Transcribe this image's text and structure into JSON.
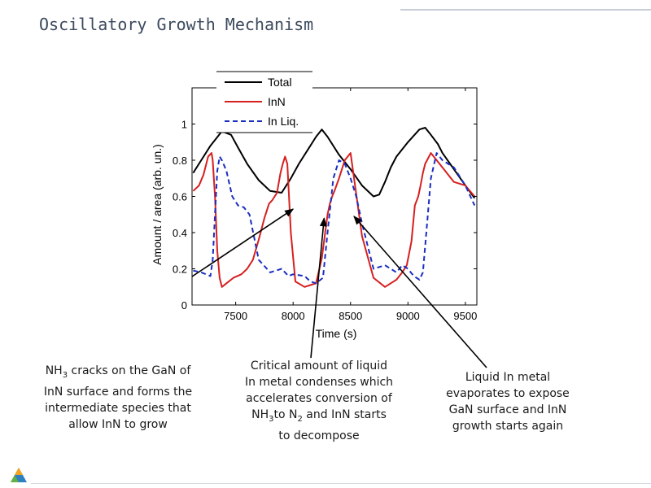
{
  "slide_title": "Oscillatory Growth Mechanism",
  "chart_data": {
    "type": "line",
    "xlabel": "Time (s)",
    "ylabel": "Amount / area (arb. un.)",
    "xlim": [
      7120,
      9600
    ],
    "ylim": [
      0,
      1.2
    ],
    "xticks": [
      "7500",
      "8000",
      "8500",
      "9000",
      "9500"
    ],
    "yticks": [
      "0",
      "0.2",
      "0.4",
      "0.6",
      "0.8",
      "1"
    ],
    "legend_position": "top-center",
    "series": [
      {
        "name": "Total",
        "color": "#000000",
        "style": "solid",
        "x": [
          7130,
          7200,
          7280,
          7380,
          7460,
          7520,
          7600,
          7700,
          7800,
          7900,
          7980,
          8050,
          8150,
          8200,
          8250,
          8300,
          8400,
          8500,
          8600,
          8700,
          8750,
          8800,
          8850,
          8900,
          9000,
          9100,
          9150,
          9200,
          9260,
          9300,
          9400,
          9500,
          9580
        ],
        "values": [
          0.73,
          0.8,
          0.88,
          0.96,
          0.94,
          0.87,
          0.78,
          0.69,
          0.63,
          0.62,
          0.7,
          0.78,
          0.88,
          0.93,
          0.97,
          0.93,
          0.83,
          0.75,
          0.66,
          0.6,
          0.61,
          0.68,
          0.76,
          0.82,
          0.9,
          0.97,
          0.98,
          0.94,
          0.89,
          0.84,
          0.75,
          0.66,
          0.59
        ]
      },
      {
        "name": "InN",
        "color": "#d62020",
        "style": "solid",
        "x": [
          7130,
          7180,
          7220,
          7260,
          7290,
          7300,
          7320,
          7340,
          7360,
          7380,
          7420,
          7480,
          7550,
          7600,
          7650,
          7700,
          7750,
          7790,
          7820,
          7860,
          7890,
          7910,
          7930,
          7950,
          7980,
          8020,
          8100,
          8150,
          8200,
          8250,
          8300,
          8320,
          8340,
          8360,
          8400,
          8450,
          8500,
          8600,
          8700,
          8800,
          8850,
          8900,
          8950,
          8990,
          9030,
          9060,
          9090,
          9110,
          9130,
          9150,
          9200,
          9300,
          9400,
          9500,
          9580
        ],
        "values": [
          0.63,
          0.66,
          0.72,
          0.82,
          0.84,
          0.8,
          0.6,
          0.3,
          0.15,
          0.1,
          0.12,
          0.15,
          0.17,
          0.2,
          0.25,
          0.36,
          0.48,
          0.56,
          0.58,
          0.62,
          0.73,
          0.78,
          0.82,
          0.78,
          0.4,
          0.13,
          0.1,
          0.11,
          0.12,
          0.26,
          0.5,
          0.56,
          0.6,
          0.63,
          0.7,
          0.8,
          0.84,
          0.38,
          0.15,
          0.1,
          0.12,
          0.14,
          0.18,
          0.22,
          0.35,
          0.55,
          0.6,
          0.66,
          0.73,
          0.78,
          0.84,
          0.76,
          0.68,
          0.66,
          0.6
        ]
      },
      {
        "name": "In Liq.",
        "color": "#1a2ec0",
        "style": "dashed",
        "x": [
          7130,
          7200,
          7280,
          7300,
          7320,
          7340,
          7360,
          7380,
          7420,
          7470,
          7520,
          7570,
          7620,
          7700,
          7800,
          7900,
          7960,
          8000,
          8100,
          8150,
          8200,
          8260,
          8300,
          8350,
          8400,
          8450,
          8500,
          8550,
          8600,
          8700,
          8800,
          8900,
          8950,
          9000,
          9050,
          9100,
          9130,
          9160,
          9200,
          9250,
          9300,
          9400,
          9500,
          9580
        ],
        "values": [
          0.19,
          0.18,
          0.16,
          0.25,
          0.5,
          0.74,
          0.82,
          0.8,
          0.74,
          0.6,
          0.55,
          0.54,
          0.5,
          0.25,
          0.18,
          0.2,
          0.16,
          0.17,
          0.16,
          0.13,
          0.12,
          0.15,
          0.4,
          0.7,
          0.8,
          0.78,
          0.7,
          0.6,
          0.45,
          0.2,
          0.22,
          0.18,
          0.22,
          0.2,
          0.16,
          0.14,
          0.18,
          0.4,
          0.7,
          0.84,
          0.8,
          0.76,
          0.66,
          0.55
        ]
      }
    ],
    "annotations": [
      {
        "target": "InN rising slope",
        "target_x": 8000,
        "target_y": 0.53
      },
      {
        "target": "InN peak (liquid In condenses)",
        "target_x": 8270,
        "target_y": 0.48
      },
      {
        "target": "In Liq. decline",
        "target_x": 8530,
        "target_y": 0.49
      }
    ]
  },
  "callouts": [
    {
      "text_a": "NH",
      "sub_a": "3",
      "text_b": " cracks on the GaN of InN surface and forms the intermediate species that allow InN to grow"
    },
    {
      "text_a": "Critical amount of liquid In metal condenses which accelerates conversion of NH",
      "sub_a": "3",
      "text_b": "to N",
      "sub_b": "2",
      "text_c": " and InN starts to decompose"
    },
    {
      "text_a": "Liquid In metal evaporates to expose GaN surface and InN growth starts again"
    }
  ]
}
